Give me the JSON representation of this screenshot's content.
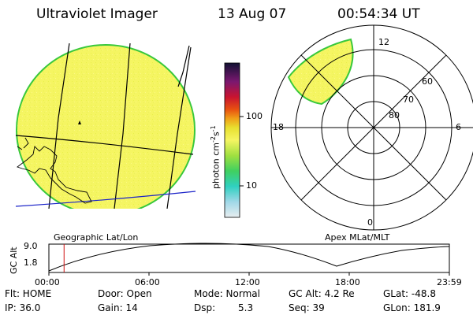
{
  "header": {
    "instrument": "Ultraviolet Imager",
    "date": "13 Aug 07",
    "time": "00:54:34 UT"
  },
  "colorbar": {
    "unit_label": "photon cm",
    "unit_sup1": "-2",
    "unit_mid": "s",
    "unit_sup2": "-1",
    "ticks": [
      "100",
      "10"
    ]
  },
  "polar_plot": {
    "labels": {
      "top": "12",
      "bottom": "0",
      "left": "18",
      "right": "6",
      "lat_60": "60",
      "lat_70": "70",
      "lat_80": "80"
    },
    "caption": "Apex MLat/MLT"
  },
  "geo_plot": {
    "caption": "Geographic Lat/Lon"
  },
  "altitude_panel": {
    "ylabel": "GC Alt",
    "yticks": [
      "9.0",
      "1.8"
    ],
    "xticks": [
      "00:00",
      "06:00",
      "12:00",
      "18:00",
      "23:59"
    ],
    "current_time_marker_hours": 0.91
  },
  "status": {
    "row1": {
      "flt": "Flt: HOME",
      "door": "Door: Open",
      "mode": "Mode: Normal",
      "gc_alt": "GC Alt: 4.2 Re",
      "glat": "GLat: -48.8"
    },
    "row2": {
      "ip": "IP: 36.0",
      "gain": "Gain: 14",
      "dsp_label": "Dsp:",
      "dsp_value": "5.3",
      "seq": "Seq: 39",
      "glon": "GLon: 181.9"
    }
  },
  "colors": {
    "image_fill": "#f5f562",
    "image_edge": "#39c83c",
    "marker": "#d01010",
    "equator_line": "#1a22c8"
  }
}
